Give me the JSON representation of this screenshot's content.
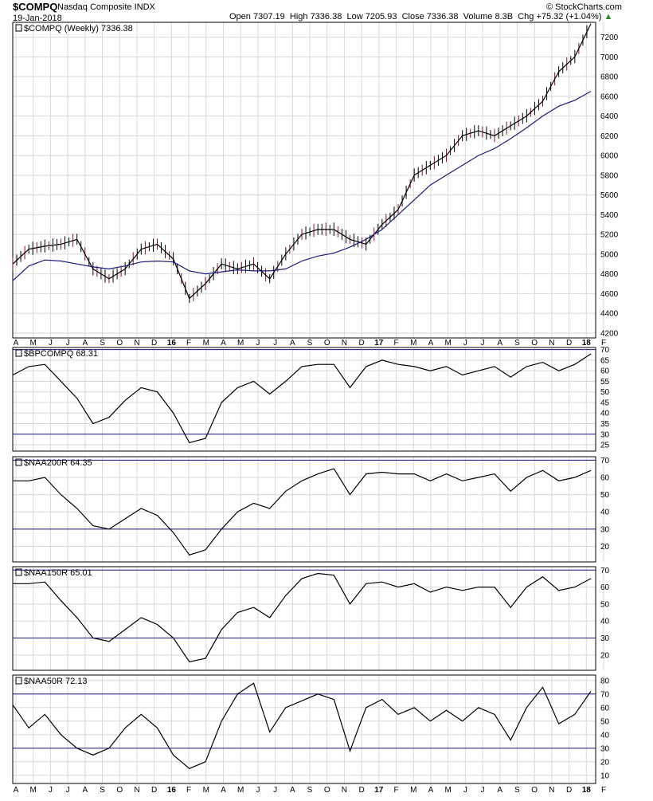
{
  "header": {
    "symbol": "$COMPQ",
    "name": "Nasdaq Composite INDX",
    "date": "19-Jan-2018",
    "open_label": "Open",
    "open": "7307.19",
    "high_label": "High",
    "high": "7336.38",
    "low_label": "Low",
    "low": "7205.93",
    "close_label": "Close",
    "close": "7336.38",
    "volume_label": "Volume",
    "volume": "8.3B",
    "chg_label": "Chg",
    "chg": "+75.32 (+1.04%)",
    "watermark": "© StockCharts.com"
  },
  "x_axis": {
    "labels": [
      "A",
      "M",
      "J",
      "J",
      "A",
      "S",
      "O",
      "N",
      "D",
      "16",
      "F",
      "M",
      "A",
      "M",
      "J",
      "J",
      "A",
      "S",
      "O",
      "N",
      "D",
      "17",
      "F",
      "M",
      "A",
      "M",
      "J",
      "J",
      "A",
      "S",
      "O",
      "N",
      "D",
      "18",
      "F"
    ]
  },
  "colors": {
    "price_line": "#000000",
    "moving_average": "#1a1a80",
    "down_bar": "#8b0f3f",
    "grid": "#d8d8d8",
    "ref_line": "#1a1a80"
  },
  "chart_data": [
    {
      "type": "line",
      "panel": "price",
      "title": "$COMPQ (Weekly) 7336.38",
      "ylim": [
        4150,
        7350
      ],
      "yticks": [
        4200,
        4400,
        4600,
        4800,
        5000,
        5200,
        5400,
        5600,
        5800,
        6000,
        6200,
        6400,
        6600,
        6800,
        7000,
        7200
      ],
      "series": [
        {
          "name": "$COMPQ",
          "x": [
            0,
            4,
            8,
            12,
            16,
            20,
            24,
            28,
            32,
            36,
            40,
            44,
            48,
            52,
            56,
            60,
            64,
            68,
            72,
            76,
            80,
            84,
            88,
            92,
            96,
            100,
            104,
            108,
            112,
            116,
            120,
            124,
            128,
            132,
            136,
            140,
            144
          ],
          "y": [
            4900,
            5050,
            5080,
            5100,
            5150,
            4850,
            4750,
            4850,
            5050,
            5100,
            4950,
            4550,
            4700,
            4900,
            4850,
            4900,
            4750,
            5000,
            5200,
            5250,
            5250,
            5150,
            5100,
            5300,
            5450,
            5800,
            5900,
            6000,
            6200,
            6250,
            6200,
            6300,
            6400,
            6550,
            6850,
            7000,
            7336
          ]
        },
        {
          "name": "MA",
          "x": [
            0,
            4,
            8,
            12,
            16,
            20,
            24,
            28,
            32,
            36,
            40,
            44,
            48,
            52,
            56,
            60,
            64,
            68,
            72,
            76,
            80,
            84,
            88,
            92,
            96,
            100,
            104,
            108,
            112,
            116,
            120,
            124,
            128,
            132,
            136,
            140,
            144
          ],
          "y": [
            4730,
            4880,
            4940,
            4930,
            4900,
            4870,
            4850,
            4880,
            4920,
            4930,
            4920,
            4830,
            4800,
            4820,
            4840,
            4830,
            4830,
            4850,
            4930,
            4980,
            5010,
            5070,
            5150,
            5250,
            5400,
            5550,
            5700,
            5800,
            5900,
            6000,
            6070,
            6170,
            6280,
            6400,
            6500,
            6560,
            6650
          ]
        }
      ]
    },
    {
      "type": "line",
      "panel": "indicator",
      "title": "$BPCOMPQ 68.31",
      "ylim": [
        22,
        71
      ],
      "yticks": [
        25,
        30,
        35,
        40,
        45,
        50,
        55,
        60,
        65,
        70
      ],
      "ref_lines": [
        30,
        70
      ],
      "series": [
        {
          "name": "$BPCOMPQ",
          "x": [
            0,
            4,
            8,
            12,
            16,
            20,
            24,
            28,
            32,
            36,
            40,
            44,
            48,
            52,
            56,
            60,
            64,
            68,
            72,
            76,
            80,
            84,
            88,
            92,
            96,
            100,
            104,
            108,
            112,
            116,
            120,
            124,
            128,
            132,
            136,
            140,
            144
          ],
          "y": [
            58,
            62,
            63,
            55,
            47,
            35,
            38,
            46,
            52,
            50,
            40,
            26,
            28,
            45,
            52,
            55,
            49,
            55,
            62,
            63,
            63,
            52,
            62,
            65,
            63,
            62,
            60,
            62,
            58,
            60,
            62,
            57,
            62,
            64,
            60,
            63,
            68
          ]
        }
      ]
    },
    {
      "type": "line",
      "panel": "indicator",
      "title": "$NAA200R 64.35",
      "ylim": [
        11,
        72
      ],
      "yticks": [
        20,
        30,
        40,
        50,
        60,
        70
      ],
      "ref_lines": [
        30,
        70
      ],
      "series": [
        {
          "name": "$NAA200R",
          "x": [
            0,
            4,
            8,
            12,
            16,
            20,
            24,
            28,
            32,
            36,
            40,
            44,
            48,
            52,
            56,
            60,
            64,
            68,
            72,
            76,
            80,
            84,
            88,
            92,
            96,
            100,
            104,
            108,
            112,
            116,
            120,
            124,
            128,
            132,
            136,
            140,
            144
          ],
          "y": [
            58,
            58,
            60,
            50,
            42,
            32,
            30,
            36,
            42,
            38,
            28,
            15,
            18,
            30,
            40,
            45,
            42,
            52,
            58,
            62,
            65,
            50,
            62,
            63,
            62,
            62,
            58,
            62,
            58,
            60,
            62,
            52,
            60,
            64,
            58,
            60,
            64
          ]
        }
      ]
    },
    {
      "type": "line",
      "panel": "indicator",
      "title": "$NAA150R 65.01",
      "ylim": [
        11,
        72
      ],
      "yticks": [
        20,
        30,
        40,
        50,
        60,
        70
      ],
      "ref_lines": [
        30,
        70
      ],
      "series": [
        {
          "name": "$NAA150R",
          "x": [
            0,
            4,
            8,
            12,
            16,
            20,
            24,
            28,
            32,
            36,
            40,
            44,
            48,
            52,
            56,
            60,
            64,
            68,
            72,
            76,
            80,
            84,
            88,
            92,
            96,
            100,
            104,
            108,
            112,
            116,
            120,
            124,
            128,
            132,
            136,
            140,
            144
          ],
          "y": [
            62,
            62,
            63,
            52,
            42,
            30,
            28,
            35,
            42,
            38,
            30,
            16,
            18,
            35,
            45,
            48,
            42,
            55,
            65,
            68,
            67,
            50,
            62,
            63,
            60,
            62,
            57,
            60,
            58,
            60,
            60,
            48,
            60,
            66,
            58,
            60,
            65
          ]
        }
      ]
    },
    {
      "type": "line",
      "panel": "indicator",
      "title": "$NAA50R 72.13",
      "ylim": [
        4,
        84
      ],
      "yticks": [
        10,
        20,
        30,
        40,
        50,
        60,
        70,
        80
      ],
      "ref_lines": [
        30,
        70
      ],
      "series": [
        {
          "name": "$NAA50R",
          "x": [
            0,
            4,
            8,
            12,
            16,
            20,
            24,
            28,
            32,
            36,
            40,
            44,
            48,
            52,
            56,
            60,
            64,
            68,
            72,
            76,
            80,
            84,
            88,
            92,
            96,
            100,
            104,
            108,
            112,
            116,
            120,
            124,
            128,
            132,
            136,
            140,
            144
          ],
          "y": [
            62,
            45,
            55,
            40,
            30,
            25,
            30,
            45,
            55,
            45,
            25,
            15,
            20,
            50,
            70,
            78,
            42,
            60,
            65,
            70,
            66,
            28,
            60,
            66,
            55,
            60,
            50,
            58,
            50,
            60,
            55,
            36,
            60,
            75,
            48,
            55,
            72
          ]
        }
      ]
    }
  ]
}
